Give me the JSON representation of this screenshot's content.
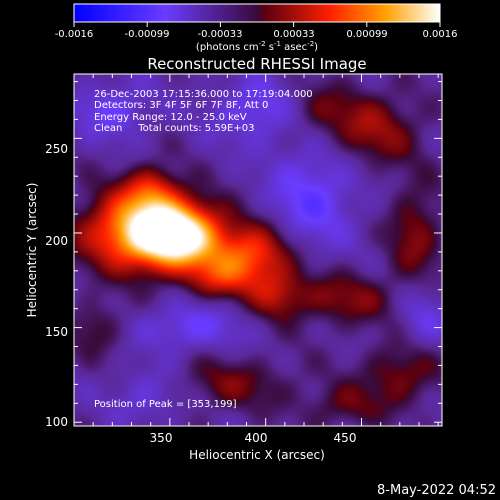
{
  "chart_data": {
    "type": "heatmap",
    "title": "Reconstructed RHESSI Image",
    "xlabel": "Heliocentric X (arcsec)",
    "ylabel": "Heliocentric Y (arcsec)",
    "xlim": [
      300,
      492
    ],
    "ylim": [
      98,
      284
    ],
    "x_ticks": [
      350,
      400,
      450
    ],
    "y_ticks": [
      100,
      150,
      200,
      250
    ],
    "x_tick_labels": [
      "350",
      "400",
      "450"
    ],
    "y_tick_labels": [
      "100",
      "150",
      "200",
      "250"
    ],
    "colorbar": {
      "range": [
        -0.0016,
        0.0016
      ],
      "tick_labels": [
        "-0.0016",
        "-0.00099",
        "-0.00033",
        "0.00033",
        "0.00099",
        "0.0016"
      ],
      "unit_prefix": "(photons cm",
      "unit_exp1": "-2",
      "unit_mid": " s",
      "unit_exp2": "-1",
      "unit_mid2": " asec",
      "unit_exp3": "-2",
      "unit_suffix": ")"
    },
    "annotations": {
      "time": "26-Dec-2003 17:15:36.000 to 17:19:04.000",
      "detectors": "Detectors: 3F 4F 5F 6F 7F 8F, Att 0",
      "energy": "Energy Range: 12.0 - 25.0 keV",
      "clean": "Clean     Total counts: 5.59E+03",
      "peak": "Position of Peak = [353,199]"
    },
    "peak": {
      "x": 353,
      "y": 199
    },
    "sources": [
      {
        "x": 353,
        "y": 199,
        "amp": 1.35,
        "sx": 16,
        "sy": 12
      },
      {
        "x": 328,
        "y": 201,
        "amp": 0.7,
        "sx": 18,
        "sy": 14
      },
      {
        "x": 340,
        "y": 222,
        "amp": 0.45,
        "sx": 10,
        "sy": 9
      },
      {
        "x": 392,
        "y": 188,
        "amp": 0.65,
        "sx": 14,
        "sy": 11
      },
      {
        "x": 406,
        "y": 168,
        "amp": 0.35,
        "sx": 10,
        "sy": 9
      },
      {
        "x": 375,
        "y": 176,
        "amp": 0.35,
        "sx": 12,
        "sy": 8
      },
      {
        "x": 455,
        "y": 255,
        "amp": 0.35,
        "sx": 18,
        "sy": 14
      },
      {
        "x": 478,
        "y": 200,
        "amp": 0.3,
        "sx": 10,
        "sy": 18
      },
      {
        "x": 440,
        "y": 165,
        "amp": 0.3,
        "sx": 20,
        "sy": 10
      },
      {
        "x": 470,
        "y": 125,
        "amp": 0.3,
        "sx": 14,
        "sy": 12
      },
      {
        "x": 380,
        "y": 120,
        "amp": 0.25,
        "sx": 25,
        "sy": 10
      },
      {
        "x": 425,
        "y": 265,
        "amp": 0.2,
        "sx": 12,
        "sy": 10
      },
      {
        "x": 312,
        "y": 150,
        "amp": 0.22,
        "sx": 10,
        "sy": 10
      },
      {
        "x": 440,
        "y": 108,
        "amp": 0.22,
        "sx": 14,
        "sy": 8
      },
      {
        "x": 320,
        "y": 265,
        "amp": -0.3,
        "sx": 14,
        "sy": 10
      },
      {
        "x": 360,
        "y": 150,
        "amp": -0.3,
        "sx": 18,
        "sy": 9
      },
      {
        "x": 425,
        "y": 220,
        "amp": -0.35,
        "sx": 16,
        "sy": 20
      },
      {
        "x": 395,
        "y": 265,
        "amp": -0.3,
        "sx": 16,
        "sy": 12
      },
      {
        "x": 340,
        "y": 115,
        "amp": -0.25,
        "sx": 14,
        "sy": 10
      },
      {
        "x": 482,
        "y": 155,
        "amp": -0.22,
        "sx": 10,
        "sy": 12
      }
    ]
  },
  "footer": {
    "date": "8-May-2022 04:52"
  }
}
